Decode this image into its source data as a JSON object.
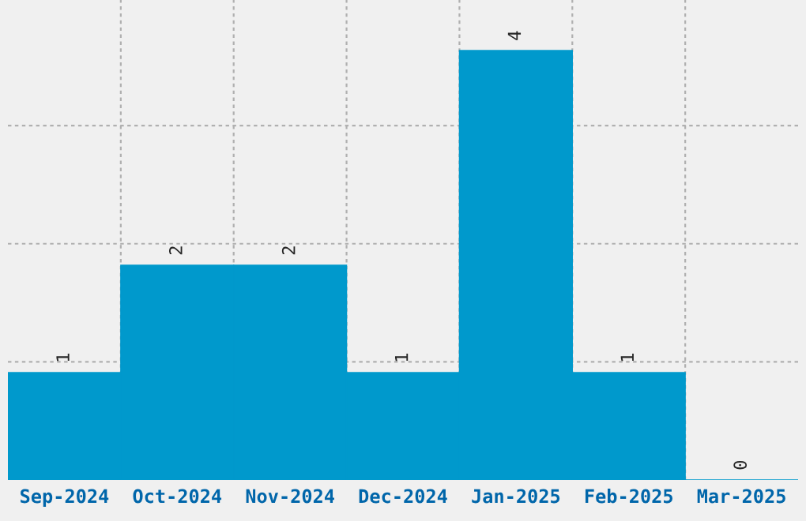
{
  "chart_data": {
    "type": "bar",
    "categories": [
      "Sep-2024",
      "Oct-2024",
      "Nov-2024",
      "Dec-2024",
      "Jan-2025",
      "Feb-2025",
      "Mar-2025"
    ],
    "values": [
      1,
      2,
      2,
      1,
      4,
      1,
      0
    ],
    "color": "#0099cc",
    "ylim": [
      0,
      4.47
    ],
    "yticks": [
      {
        "value": 1.1,
        "label": null
      },
      {
        "value": 2.2,
        "label": null
      },
      {
        "value": 3.3,
        "label": null
      }
    ],
    "grid": true,
    "data_labels": true
  }
}
